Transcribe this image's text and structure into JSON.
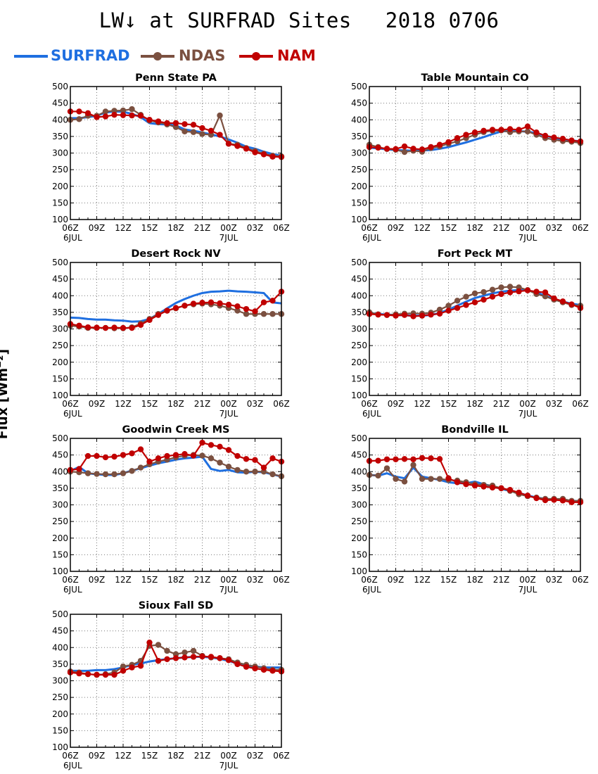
{
  "header": {
    "title_left": "LW↓ at SURFRAD Sites",
    "title_right": "2018 0706"
  },
  "legend": [
    {
      "label": "SURFRAD",
      "color": "#1f6fe0",
      "marker": false
    },
    {
      "label": "NDAS",
      "color": "#7b5040",
      "marker": true
    },
    {
      "label": "NAM",
      "color": "#c00000",
      "marker": true
    }
  ],
  "ylabel": "Flux [Wm⁻²]",
  "colors": {
    "SURFRAD": "#1f6fe0",
    "NDAS": "#7b5040",
    "NAM": "#c00000"
  },
  "chart_data": [
    {
      "type": "line",
      "title": "Penn State PA",
      "x": [
        0,
        1,
        2,
        3,
        4,
        5,
        6,
        7,
        8,
        9,
        10,
        11,
        12,
        13,
        14,
        15,
        16,
        17,
        18,
        19,
        20,
        21,
        22,
        23,
        24
      ],
      "x_ticks": [
        "06Z",
        "09Z",
        "12Z",
        "15Z",
        "18Z",
        "21Z",
        "00Z",
        "03Z",
        "06Z"
      ],
      "x_date_labels": [
        "6JUL",
        "7JUL"
      ],
      "ylim": [
        100,
        500
      ],
      "y_ticks": [
        100,
        150,
        200,
        250,
        300,
        350,
        400,
        450,
        500
      ],
      "grid": true,
      "series": [
        {
          "name": "SURFRAD",
          "values": [
            405,
            405,
            408,
            412,
            422,
            425,
            424,
            418,
            408,
            390,
            387,
            386,
            383,
            371,
            367,
            362,
            356,
            350,
            341,
            331,
            319,
            313,
            304,
            297,
            292
          ]
        },
        {
          "name": "NDAS",
          "values": [
            400,
            402,
            412,
            412,
            425,
            427,
            428,
            432,
            415,
            398,
            392,
            386,
            378,
            365,
            363,
            357,
            355,
            413,
            328,
            325,
            315,
            306,
            298,
            292,
            290
          ]
        },
        {
          "name": "NAM",
          "values": [
            425,
            425,
            420,
            408,
            410,
            415,
            414,
            413,
            412,
            400,
            395,
            390,
            390,
            387,
            385,
            375,
            367,
            355,
            328,
            321,
            313,
            302,
            296,
            289,
            288
          ]
        }
      ]
    },
    {
      "type": "line",
      "title": "Table Mountain CO",
      "x": [
        0,
        1,
        2,
        3,
        4,
        5,
        6,
        7,
        8,
        9,
        10,
        11,
        12,
        13,
        14,
        15,
        16,
        17,
        18,
        19,
        20,
        21,
        22,
        23,
        24
      ],
      "x_ticks": [
        "06Z",
        "09Z",
        "12Z",
        "15Z",
        "18Z",
        "21Z",
        "00Z",
        "03Z",
        "06Z"
      ],
      "x_date_labels": [
        "6JUL",
        "7JUL"
      ],
      "ylim": [
        100,
        500
      ],
      "y_ticks": [
        100,
        150,
        200,
        250,
        300,
        350,
        400,
        450,
        500
      ],
      "grid": true,
      "series": [
        {
          "name": "SURFRAD",
          "values": [
            316,
            314,
            311,
            309,
            308,
            307,
            308,
            309,
            313,
            318,
            325,
            332,
            340,
            348,
            357,
            365,
            367,
            366,
            364,
            360,
            352,
            346,
            341,
            338,
            335
          ]
        },
        {
          "name": "NDAS",
          "values": [
            325,
            318,
            312,
            310,
            303,
            307,
            304,
            315,
            320,
            328,
            335,
            345,
            355,
            363,
            367,
            368,
            363,
            365,
            365,
            355,
            345,
            340,
            336,
            334,
            330
          ]
        },
        {
          "name": "NAM",
          "values": [
            318,
            316,
            313,
            312,
            320,
            313,
            311,
            318,
            325,
            333,
            345,
            355,
            362,
            367,
            370,
            370,
            372,
            370,
            380,
            362,
            352,
            347,
            343,
            338,
            335
          ]
        }
      ]
    },
    {
      "type": "line",
      "title": "Desert Rock NV",
      "x": [
        0,
        1,
        2,
        3,
        4,
        5,
        6,
        7,
        8,
        9,
        10,
        11,
        12,
        13,
        14,
        15,
        16,
        17,
        18,
        19,
        20,
        21,
        22,
        23,
        24
      ],
      "x_ticks": [
        "06Z",
        "09Z",
        "12Z",
        "15Z",
        "18Z",
        "21Z",
        "00Z",
        "03Z",
        "06Z"
      ],
      "x_date_labels": [
        "6JUL",
        "7JUL"
      ],
      "ylim": [
        100,
        500
      ],
      "y_ticks": [
        100,
        150,
        200,
        250,
        300,
        350,
        400,
        450,
        500
      ],
      "grid": true,
      "series": [
        {
          "name": "SURFRAD",
          "values": [
            334,
            333,
            330,
            328,
            328,
            326,
            325,
            322,
            323,
            330,
            345,
            362,
            378,
            390,
            400,
            408,
            412,
            413,
            415,
            413,
            412,
            410,
            408,
            380,
            377
          ]
        },
        {
          "name": "NDAS",
          "values": [
            310,
            307,
            303,
            303,
            303,
            302,
            302,
            305,
            316,
            330,
            345,
            355,
            362,
            370,
            374,
            376,
            374,
            370,
            363,
            355,
            345,
            345,
            345,
            345,
            345
          ]
        },
        {
          "name": "NAM",
          "values": [
            315,
            310,
            305,
            304,
            303,
            304,
            303,
            303,
            312,
            327,
            342,
            355,
            363,
            370,
            376,
            379,
            380,
            377,
            373,
            368,
            360,
            353,
            380,
            385,
            412
          ]
        }
      ]
    },
    {
      "type": "line",
      "title": "Fort Peck MT",
      "x": [
        0,
        1,
        2,
        3,
        4,
        5,
        6,
        7,
        8,
        9,
        10,
        11,
        12,
        13,
        14,
        15,
        16,
        17,
        18,
        19,
        20,
        21,
        22,
        23,
        24
      ],
      "x_ticks": [
        "06Z",
        "09Z",
        "12Z",
        "15Z",
        "18Z",
        "21Z",
        "00Z",
        "03Z",
        "06Z"
      ],
      "x_date_labels": [
        "6JUL",
        "7JUL"
      ],
      "ylim": [
        100,
        500
      ],
      "y_ticks": [
        100,
        150,
        200,
        250,
        300,
        350,
        400,
        450,
        500
      ],
      "grid": true,
      "series": [
        {
          "name": "SURFRAD",
          "values": [
            348,
            345,
            343,
            342,
            341,
            340,
            340,
            342,
            348,
            358,
            370,
            382,
            393,
            400,
            407,
            412,
            415,
            417,
            416,
            410,
            400,
            390,
            382,
            376,
            372
          ]
        },
        {
          "name": "NDAS",
          "values": [
            350,
            344,
            342,
            344,
            346,
            347,
            346,
            349,
            358,
            370,
            385,
            397,
            407,
            411,
            418,
            425,
            427,
            425,
            417,
            405,
            398,
            388,
            380,
            372,
            370
          ]
        },
        {
          "name": "NAM",
          "values": [
            345,
            343,
            342,
            340,
            342,
            338,
            340,
            343,
            346,
            355,
            363,
            372,
            380,
            388,
            397,
            405,
            410,
            413,
            416,
            412,
            410,
            392,
            383,
            374,
            363
          ]
        }
      ]
    },
    {
      "type": "line",
      "title": "Goodwin Creek MS",
      "x": [
        0,
        1,
        2,
        3,
        4,
        5,
        6,
        7,
        8,
        9,
        10,
        11,
        12,
        13,
        14,
        15,
        16,
        17,
        18,
        19,
        20,
        21,
        22,
        23,
        24
      ],
      "x_ticks": [
        "06Z",
        "09Z",
        "12Z",
        "15Z",
        "18Z",
        "21Z",
        "00Z",
        "03Z",
        "06Z"
      ],
      "x_date_labels": [
        "6JUL",
        "7JUL"
      ],
      "ylim": [
        100,
        500
      ],
      "y_ticks": [
        100,
        150,
        200,
        250,
        300,
        350,
        400,
        450,
        500
      ],
      "grid": true,
      "series": [
        {
          "name": "SURFRAD",
          "values": [
            402,
            414,
            395,
            392,
            390,
            390,
            395,
            403,
            410,
            418,
            425,
            430,
            436,
            440,
            442,
            445,
            408,
            402,
            405,
            398,
            397,
            400,
            398,
            392,
            385
          ]
        },
        {
          "name": "NDAS",
          "values": [
            400,
            398,
            395,
            393,
            392,
            392,
            395,
            402,
            412,
            422,
            430,
            436,
            443,
            448,
            450,
            448,
            440,
            427,
            415,
            405,
            400,
            400,
            400,
            392,
            386
          ]
        },
        {
          "name": "NAM",
          "values": [
            405,
            408,
            447,
            447,
            443,
            445,
            450,
            455,
            467,
            430,
            440,
            447,
            450,
            453,
            448,
            487,
            480,
            475,
            465,
            447,
            438,
            435,
            412,
            440,
            430
          ]
        }
      ]
    },
    {
      "type": "line",
      "title": "Bondville IL",
      "x": [
        0,
        1,
        2,
        3,
        4,
        5,
        6,
        7,
        8,
        9,
        10,
        11,
        12,
        13,
        14,
        15,
        16,
        17,
        18,
        19,
        20,
        21,
        22,
        23,
        24
      ],
      "x_ticks": [
        "06Z",
        "09Z",
        "12Z",
        "15Z",
        "18Z",
        "21Z",
        "00Z",
        "03Z",
        "06Z"
      ],
      "x_date_labels": [
        "6JUL",
        "7JUL"
      ],
      "ylim": [
        100,
        500
      ],
      "y_ticks": [
        100,
        150,
        200,
        250,
        300,
        350,
        400,
        450,
        500
      ],
      "grid": true,
      "series": [
        {
          "name": "SURFRAD",
          "values": [
            390,
            388,
            395,
            385,
            380,
            412,
            385,
            380,
            375,
            368,
            365,
            365,
            370,
            362,
            356,
            348,
            342,
            336,
            328,
            322,
            318,
            316,
            314,
            312,
            311
          ]
        },
        {
          "name": "NDAS",
          "values": [
            390,
            388,
            410,
            378,
            370,
            420,
            378,
            378,
            378,
            375,
            373,
            368,
            362,
            360,
            358,
            350,
            342,
            332,
            326,
            322,
            318,
            318,
            318,
            312,
            312
          ]
        },
        {
          "name": "NAM",
          "values": [
            432,
            433,
            437,
            437,
            438,
            437,
            441,
            440,
            438,
            380,
            368,
            362,
            358,
            355,
            352,
            350,
            345,
            337,
            328,
            320,
            314,
            315,
            313,
            308,
            308
          ]
        }
      ]
    },
    {
      "type": "line",
      "title": "Sioux Fall SD",
      "x": [
        0,
        1,
        2,
        3,
        4,
        5,
        6,
        7,
        8,
        9,
        10,
        11,
        12,
        13,
        14,
        15,
        16,
        17,
        18,
        19,
        20,
        21,
        22,
        23,
        24
      ],
      "x_ticks": [
        "06Z",
        "09Z",
        "12Z",
        "15Z",
        "18Z",
        "21Z",
        "00Z",
        "03Z",
        "06Z"
      ],
      "x_date_labels": [
        "6JUL",
        "7JUL"
      ],
      "ylim": [
        100,
        500
      ],
      "y_ticks": [
        100,
        150,
        200,
        250,
        300,
        350,
        400,
        450,
        500
      ],
      "grid": true,
      "series": [
        {
          "name": "SURFRAD",
          "values": [
            330,
            330,
            330,
            332,
            332,
            335,
            340,
            348,
            352,
            358,
            362,
            365,
            368,
            370,
            372,
            372,
            370,
            366,
            360,
            352,
            346,
            343,
            340,
            340,
            340
          ]
        },
        {
          "name": "NDAS",
          "values": [
            328,
            325,
            320,
            318,
            320,
            325,
            343,
            348,
            360,
            405,
            408,
            390,
            380,
            385,
            390,
            375,
            370,
            368,
            365,
            355,
            348,
            343,
            338,
            333,
            333
          ]
        },
        {
          "name": "NAM",
          "values": [
            325,
            322,
            320,
            318,
            318,
            318,
            330,
            340,
            345,
            415,
            360,
            365,
            368,
            370,
            372,
            373,
            372,
            368,
            362,
            350,
            342,
            337,
            333,
            330,
            328
          ]
        }
      ]
    }
  ]
}
